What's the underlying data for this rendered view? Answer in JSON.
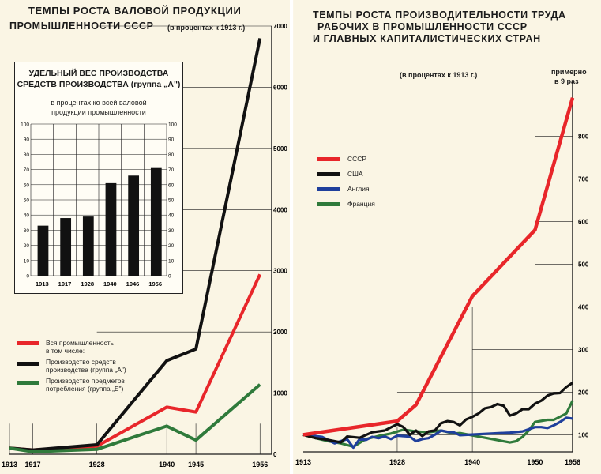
{
  "colors": {
    "red": "#e8262a",
    "black": "#111111",
    "blue": "#1f3f9c",
    "green": "#2f7a3b",
    "paper": "#faf5e4",
    "grid": "#1a1a1a"
  },
  "left": {
    "title_line1": "ТЕМПЫ РОСТА ВАЛОВОЙ ПРОДУКЦИИ",
    "title_line2": "ПРОМЫШЛЕННОСТИ СССР",
    "unit": "(в процентах к 1913 г.)",
    "legend": {
      "all": "Вся промышленность",
      "all_sub": "в том числе:",
      "a_line1": "Производство средств",
      "a_line2": "производства (группа „А\")",
      "b_line1": "Производство предметов",
      "b_line2": "потребления   (группа „Б\")"
    },
    "inset": {
      "title_line1": "УДЕЛЬНЫЙ ВЕС ПРОИЗВОДСТВА",
      "title_line2": "СРЕДСТВ ПРОИЗВОДСТВА (группа „А\")",
      "sub_line1": "в процентах ко всей валовой",
      "sub_line2": "продукции промышленности"
    }
  },
  "right": {
    "title_line1": "ТЕМПЫ РОСТА ПРОИЗВОДИТЕЛЬНОСТИ ТРУДА",
    "title_line2": "РАБОЧИХ В ПРОМЫШЛЕННОСТИ СССР",
    "title_line3": "И ГЛАВНЫХ КАПИТАЛИСТИЧЕСКИХ СТРАН",
    "unit": "(в процентах к 1913 г.)",
    "annot_line1": "примерно",
    "annot_line2": "в 9 раз",
    "legend": [
      "СССР",
      "США",
      "Англия",
      "Франция"
    ]
  },
  "chart_data": [
    {
      "type": "line",
      "title": "ТЕМПЫ РОСТА ВАЛОВОЙ ПРОДУКЦИИ ПРОМЫШЛЕННОСТИ СССР",
      "ylabel": "(в процентах к 1913 г.)",
      "x_ticks": [
        "1913",
        "1917",
        "1928",
        "1940",
        "1945",
        "1956"
      ],
      "y_ticks": [
        "0",
        "1000",
        "2000",
        "3000",
        "4000",
        "5000",
        "6000",
        "7000"
      ],
      "ylim": [
        0,
        7000
      ],
      "grid": true,
      "series": [
        {
          "name": "Вся промышленность",
          "color": "red",
          "points": [
            [
              1913,
              100
            ],
            [
              1917,
              70
            ],
            [
              1928,
              132
            ],
            [
              1940,
              770
            ],
            [
              1945,
              690
            ],
            [
              1956,
              2940
            ]
          ]
        },
        {
          "name": "Производство средств производства (группа „А\")",
          "color": "black",
          "points": [
            [
              1913,
              100
            ],
            [
              1917,
              70
            ],
            [
              1928,
              155
            ],
            [
              1940,
              1530
            ],
            [
              1945,
              1720
            ],
            [
              1956,
              6800
            ]
          ]
        },
        {
          "name": "Производство предметов потребления (группа „Б\")",
          "color": "green",
          "points": [
            [
              1913,
              100
            ],
            [
              1917,
              40
            ],
            [
              1928,
              80
            ],
            [
              1940,
              460
            ],
            [
              1945,
              230
            ],
            [
              1956,
              1140
            ]
          ]
        }
      ]
    },
    {
      "type": "bar",
      "title": "УДЕЛЬНЫЙ ВЕС ПРОИЗВОДСТВА СРЕДСТВ ПРОИЗВОДСТВА (группа „А\")",
      "subtitle": "в процентах ко всей валовой продукции промышленности",
      "categories": [
        "1913",
        "1917",
        "1928",
        "1940",
        "1946",
        "1956"
      ],
      "values": [
        33,
        38,
        39,
        61,
        66,
        71
      ],
      "y_ticks": [
        "0",
        "10",
        "20",
        "30",
        "40",
        "50",
        "60",
        "70",
        "80",
        "90",
        "100"
      ],
      "ylim": [
        0,
        100
      ],
      "grid": true
    },
    {
      "type": "line",
      "title": "ТЕМПЫ РОСТА ПРОИЗВОДИТЕЛЬНОСТИ ТРУДА РАБОЧИХ В ПРОМЫШЛЕННОСТИ СССР И ГЛАВНЫХ КАПИТАЛИСТИЧЕСКИХ СТРАН",
      "ylabel": "(в процентах к 1913 г.)",
      "x_ticks": [
        "1913",
        "1928",
        "1940",
        "1950",
        "1956"
      ],
      "y_ticks": [
        "100",
        "200",
        "300",
        "400",
        "500",
        "600",
        "700",
        "800"
      ],
      "ylim": [
        60,
        910
      ],
      "grid": true,
      "annotation": "примерно в 9 раз",
      "series": [
        {
          "name": "СССР",
          "color": "red",
          "points": [
            [
              1913,
              100
            ],
            [
              1928,
              132
            ],
            [
              1931,
              170
            ],
            [
              1940,
              425
            ],
            [
              1950,
              580
            ],
            [
              1956,
              890
            ]
          ]
        },
        {
          "name": "США",
          "color": "black",
          "points": [
            [
              1913,
              100
            ],
            [
              1915,
              92
            ],
            [
              1917,
              88
            ],
            [
              1919,
              82
            ],
            [
              1920,
              96
            ],
            [
              1922,
              93
            ],
            [
              1924,
              106
            ],
            [
              1926,
              110
            ],
            [
              1928,
              125
            ],
            [
              1929,
              118
            ],
            [
              1930,
              100
            ],
            [
              1931,
              110
            ],
            [
              1932,
              97
            ],
            [
              1933,
              108
            ],
            [
              1934,
              110
            ],
            [
              1935,
              127
            ],
            [
              1936,
              132
            ],
            [
              1937,
              130
            ],
            [
              1938,
              122
            ],
            [
              1939,
              136
            ],
            [
              1940,
              142
            ],
            [
              1941,
              150
            ],
            [
              1942,
              162
            ],
            [
              1943,
              165
            ],
            [
              1944,
              172
            ],
            [
              1945,
              168
            ],
            [
              1946,
              145
            ],
            [
              1947,
              150
            ],
            [
              1948,
              160
            ],
            [
              1949,
              160
            ],
            [
              1950,
              173
            ],
            [
              1951,
              180
            ],
            [
              1952,
              192
            ],
            [
              1953,
              197
            ],
            [
              1954,
              198
            ],
            [
              1955,
              212
            ],
            [
              1956,
              222
            ]
          ]
        },
        {
          "name": "Англия",
          "color": "blue",
          "points": [
            [
              1913,
              100
            ],
            [
              1916,
              95
            ],
            [
              1918,
              80
            ],
            [
              1920,
              90
            ],
            [
              1921,
              70
            ],
            [
              1922,
              90
            ],
            [
              1923,
              88
            ],
            [
              1924,
              95
            ],
            [
              1925,
              92
            ],
            [
              1926,
              96
            ],
            [
              1927,
              90
            ],
            [
              1928,
              98
            ],
            [
              1930,
              96
            ],
            [
              1931,
              85
            ],
            [
              1932,
              90
            ],
            [
              1933,
              92
            ],
            [
              1934,
              100
            ],
            [
              1935,
              110
            ],
            [
              1936,
              107
            ],
            [
              1937,
              106
            ],
            [
              1938,
              99
            ],
            [
              1943,
              103
            ],
            [
              1946,
              105
            ],
            [
              1948,
              108
            ],
            [
              1950,
              118
            ],
            [
              1951,
              118
            ],
            [
              1952,
              116
            ],
            [
              1953,
              122
            ],
            [
              1954,
              130
            ],
            [
              1955,
              140
            ],
            [
              1956,
              138
            ]
          ]
        },
        {
          "name": "Франция",
          "color": "green",
          "points": [
            [
              1913,
              100
            ],
            [
              1915,
              92
            ],
            [
              1917,
              85
            ],
            [
              1919,
              80
            ],
            [
              1921,
              72
            ],
            [
              1923,
              90
            ],
            [
              1925,
              97
            ],
            [
              1927,
              103
            ],
            [
              1929,
              112
            ],
            [
              1931,
              108
            ],
            [
              1933,
              106
            ],
            [
              1935,
              110
            ],
            [
              1937,
              103
            ],
            [
              1938,
              104
            ],
            [
              1946,
              82
            ],
            [
              1947,
              85
            ],
            [
              1948,
              95
            ],
            [
              1949,
              110
            ],
            [
              1950,
              130
            ],
            [
              1952,
              135
            ],
            [
              1953,
              135
            ],
            [
              1955,
              150
            ],
            [
              1956,
              180
            ]
          ]
        }
      ]
    }
  ]
}
